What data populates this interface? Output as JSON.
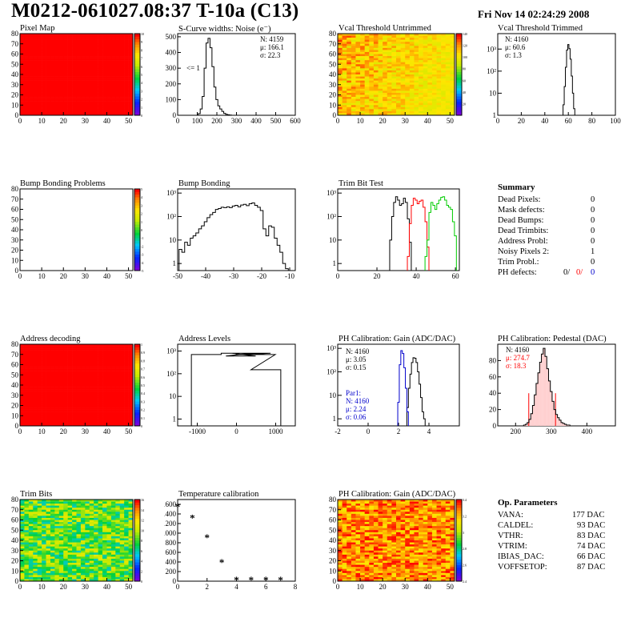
{
  "header": {
    "title": "M0212-061027.08:37 T-10a (C13)",
    "date": "Fri Nov 14 02:24:29 2008"
  },
  "panels": {
    "pixel_map": {
      "title": "Pixel Map"
    },
    "scurve": {
      "title": "S-Curve widths: Noise (e⁻)",
      "stats": [
        "N: 4159",
        "μ: 166.1",
        "σ: 22.3"
      ],
      "note": "<= 1"
    },
    "vcal_untrimmed": {
      "title": "Vcal Threshold Untrimmed"
    },
    "vcal_trimmed": {
      "title": "Vcal Threshold Trimmed",
      "stats": [
        "N: 4160",
        "μ: 60.6",
        "σ:  1.3"
      ]
    },
    "bump_problems": {
      "title": "Bump Bonding Problems"
    },
    "bump_bonding": {
      "title": "Bump Bonding"
    },
    "trim_bit_test": {
      "title": "Trim Bit Test"
    },
    "address_decoding": {
      "title": "Address decoding"
    },
    "address_levels": {
      "title": "Address Levels"
    },
    "ph_gain": {
      "title": "PH Calibration: Gain (ADC/DAC)",
      "stats": [
        "N: 4160",
        "μ: 3.05",
        "σ: 0.15"
      ],
      "par_stats": [
        "Par1:",
        "N: 4160",
        "μ: 2.24",
        "σ: 0.06"
      ]
    },
    "ph_pedestal": {
      "title": "PH Calibration: Pedestal (DAC)",
      "stats": [
        "N: 4160",
        "μ: 274.7",
        "σ: 18.3"
      ]
    },
    "trim_bits": {
      "title": "Trim Bits"
    },
    "temperature": {
      "title": "Temperature calibration"
    },
    "ph_gain_map": {
      "title": "PH Calibration: Gain (ADC/DAC)"
    }
  },
  "summary": {
    "title": "Summary",
    "rows": [
      {
        "label": "Dead Pixels:",
        "value": "0"
      },
      {
        "label": "Mask defects:",
        "value": "0"
      },
      {
        "label": "Dead Bumps:",
        "value": "0"
      },
      {
        "label": "Dead Trimbits:",
        "value": "0"
      },
      {
        "label": "Address Probl:",
        "value": "0"
      },
      {
        "label": "Noisy Pixels 2:",
        "value": "1"
      },
      {
        "label": "Trim Probl.:",
        "value": "0"
      }
    ],
    "ph_defects": {
      "label": "PH defects:",
      "v1": "0/",
      "v2": "0/",
      "v3": "0"
    }
  },
  "op_params": {
    "title": "Op. Parameters",
    "rows": [
      {
        "label": "VANA:",
        "value": "177 DAC"
      },
      {
        "label": "CALDEL:",
        "value": "93 DAC"
      },
      {
        "label": "VTHR:",
        "value": "83 DAC"
      },
      {
        "label": "VTRIM:",
        "value": "74 DAC"
      },
      {
        "label": "IBIAS_DAC:",
        "value": "66 DAC"
      },
      {
        "label": "VOFFSETOP:",
        "value": "87 DAC"
      }
    ]
  },
  "colors": {
    "red": "#ff0000",
    "blue": "#0000cc",
    "green": "#00cc00"
  },
  "chart_data": [
    {
      "id": "pixel_map",
      "type": "heatmap",
      "xlim": [
        0,
        52
      ],
      "ylim": [
        0,
        80
      ],
      "xticks": [
        0,
        10,
        20,
        30,
        40,
        50
      ],
      "yticks": [
        0,
        10,
        20,
        30,
        40,
        50,
        60,
        70,
        80
      ],
      "fill": "uniform-max",
      "zlim": [
        0,
        10
      ],
      "zticks": [
        0,
        1,
        2,
        3,
        4,
        5,
        6,
        7,
        8,
        9,
        10
      ]
    },
    {
      "id": "scurve",
      "type": "histogram",
      "xlim": [
        0,
        600
      ],
      "ylim": [
        0,
        520
      ],
      "xticks": [
        0,
        100,
        200,
        300,
        400,
        500,
        600
      ],
      "yticks": [
        0,
        100,
        200,
        300,
        400,
        500
      ],
      "x": [
        110,
        120,
        130,
        140,
        150,
        160,
        170,
        180,
        190,
        200,
        210,
        220,
        230,
        240,
        250,
        260,
        270
      ],
      "values": [
        10,
        40,
        120,
        300,
        460,
        490,
        430,
        310,
        180,
        100,
        60,
        40,
        25,
        12,
        6,
        3,
        1
      ]
    },
    {
      "id": "vcal_untrimmed",
      "type": "heatmap",
      "xlim": [
        0,
        52
      ],
      "ylim": [
        0,
        80
      ],
      "xticks": [
        0,
        10,
        20,
        30,
        40,
        50
      ],
      "yticks": [
        0,
        10,
        20,
        30,
        40,
        50,
        60,
        70,
        80
      ],
      "zlim": [
        0,
        140
      ],
      "zticks": [
        20,
        40,
        60,
        80,
        100,
        120,
        140
      ]
    },
    {
      "id": "vcal_trimmed",
      "type": "histogram",
      "log": true,
      "xlim": [
        0,
        100
      ],
      "ylim": [
        1,
        5000
      ],
      "xticks": [
        0,
        20,
        40,
        60,
        80,
        100
      ],
      "x": [
        56,
        57,
        58,
        59,
        60,
        61,
        62,
        63,
        64,
        65
      ],
      "values": [
        3,
        20,
        150,
        900,
        1600,
        1050,
        350,
        60,
        10,
        2
      ]
    },
    {
      "id": "bump_problems",
      "type": "heatmap",
      "xlim": [
        0,
        52
      ],
      "ylim": [
        0,
        80
      ],
      "xticks": [
        0,
        10,
        20,
        30,
        40,
        50
      ],
      "yticks": [
        0,
        10,
        20,
        30,
        40,
        50,
        60,
        70,
        80
      ],
      "fill": "empty",
      "zlim": [
        -5,
        5
      ],
      "zticks": [
        -5,
        -4,
        -3,
        -2,
        -1,
        0,
        1,
        2,
        3,
        4,
        5
      ]
    },
    {
      "id": "bump_bonding",
      "type": "histogram",
      "log": true,
      "xlim": [
        -50,
        -8
      ],
      "ylim": [
        0.5,
        1500
      ],
      "xticks": [
        -50,
        -40,
        -30,
        -20,
        -10
      ],
      "x": [
        -49,
        -48,
        -47,
        -46,
        -45,
        -44,
        -43,
        -42,
        -41,
        -40,
        -39,
        -38,
        -37,
        -36,
        -35,
        -34,
        -33,
        -32,
        -31,
        -30,
        -29,
        -28,
        -27,
        -26,
        -25,
        -24,
        -23,
        -22,
        -21,
        -20,
        -19,
        -18,
        -17,
        -16,
        -15,
        -14,
        -13,
        -12,
        -11
      ],
      "values": [
        4,
        3,
        8,
        6,
        12,
        15,
        20,
        30,
        40,
        60,
        90,
        120,
        150,
        200,
        220,
        250,
        240,
        260,
        240,
        280,
        300,
        260,
        310,
        330,
        290,
        350,
        380,
        300,
        250,
        180,
        30,
        15,
        40,
        35,
        12,
        6,
        3,
        1,
        0.6
      ]
    },
    {
      "id": "trim_bit_test",
      "type": "histogram",
      "log": true,
      "xlim": [
        0,
        62
      ],
      "ylim": [
        0.5,
        1500
      ],
      "xticks": [
        0,
        20,
        40,
        60
      ],
      "series": [
        {
          "color": "#000000",
          "x": [
            27,
            28,
            29,
            30,
            31,
            32,
            33,
            34,
            35,
            36,
            37
          ],
          "values": [
            10,
            100,
            400,
            700,
            500,
            300,
            350,
            600,
            400,
            80,
            8
          ]
        },
        {
          "color": "#ff0000",
          "x": [
            36,
            37,
            38,
            39,
            40,
            41,
            42,
            43,
            44,
            45,
            46
          ],
          "values": [
            2,
            50,
            300,
            600,
            500,
            350,
            450,
            500,
            250,
            60,
            5
          ]
        },
        {
          "color": "#00cc00",
          "x": [
            45,
            46,
            47,
            48,
            49,
            50,
            51,
            52,
            53,
            54,
            55,
            56,
            57,
            58,
            59,
            60
          ],
          "values": [
            2,
            10,
            150,
            400,
            300,
            200,
            350,
            500,
            650,
            700,
            500,
            300,
            250,
            200,
            60,
            15
          ]
        }
      ]
    },
    {
      "id": "address_decoding",
      "type": "heatmap",
      "xlim": [
        0,
        52
      ],
      "ylim": [
        0,
        80
      ],
      "xticks": [
        0,
        10,
        20,
        30,
        40,
        50
      ],
      "yticks": [
        0,
        10,
        20,
        30,
        40,
        50,
        60,
        70,
        80
      ],
      "fill": "uniform-max",
      "zlim": [
        0,
        1
      ],
      "zticks": [
        0,
        0.1,
        0.2,
        0.3,
        0.4,
        0.5,
        0.6,
        0.7,
        0.8,
        0.9,
        1
      ]
    },
    {
      "id": "address_levels",
      "type": "histogram",
      "log": true,
      "xlim": [
        -1500,
        1500
      ],
      "ylim": [
        0.5,
        2000
      ],
      "xticks": [
        -1000,
        0,
        1000
      ],
      "x": [
        -770,
        -10,
        110,
        260,
        360,
        490,
        610,
        750
      ],
      "values": [
        700,
        800,
        600,
        800,
        700,
        800,
        700,
        150
      ]
    },
    {
      "id": "ph_gain",
      "type": "histogram",
      "log": true,
      "xlim": [
        -2,
        6
      ],
      "ylim": [
        0.5,
        1500
      ],
      "xticks": [
        -2,
        0,
        2,
        4
      ],
      "series": [
        {
          "color": "#000000",
          "x": [
            2.6,
            2.7,
            2.8,
            2.9,
            3.0,
            3.1,
            3.2,
            3.3,
            3.4,
            3.5,
            3.6,
            3.7
          ],
          "values": [
            3,
            20,
            80,
            250,
            400,
            380,
            250,
            100,
            30,
            8,
            2,
            1
          ]
        },
        {
          "color": "#0000cc",
          "x": [
            2.0,
            2.1,
            2.2,
            2.3,
            2.4,
            2.5,
            2.6
          ],
          "values": [
            5,
            200,
            800,
            600,
            150,
            20,
            2
          ]
        }
      ]
    },
    {
      "id": "ph_pedestal",
      "type": "histogram",
      "xlim": [
        150,
        480
      ],
      "ylim": [
        0,
        100
      ],
      "xticks": [
        200,
        300,
        400
      ],
      "yticks": [
        0,
        20,
        40,
        60,
        80
      ],
      "x": [
        225,
        230,
        235,
        240,
        245,
        250,
        255,
        260,
        265,
        270,
        275,
        280,
        285,
        290,
        295,
        300,
        305,
        310,
        315,
        320,
        325,
        330,
        335,
        340,
        345,
        350
      ],
      "values": [
        1,
        2,
        4,
        8,
        15,
        25,
        38,
        52,
        65,
        78,
        88,
        95,
        85,
        70,
        55,
        42,
        30,
        20,
        14,
        10,
        7,
        4,
        3,
        2,
        1,
        1
      ],
      "fit_lines": [
        237,
        312
      ]
    },
    {
      "id": "trim_bits",
      "type": "heatmap",
      "xlim": [
        0,
        52
      ],
      "ylim": [
        0,
        80
      ],
      "xticks": [
        0,
        10,
        20,
        30,
        40,
        50
      ],
      "yticks": [
        0,
        10,
        20,
        30,
        40,
        50,
        60,
        70,
        80
      ],
      "zlim": [
        0,
        16
      ],
      "zticks": [
        0,
        2,
        4,
        6,
        8,
        10,
        12,
        14,
        16
      ]
    },
    {
      "id": "temperature",
      "type": "scatter",
      "xlim": [
        0,
        8
      ],
      "ylim": [
        0,
        1700
      ],
      "xticks": [
        0,
        2,
        4,
        6,
        8
      ],
      "yticks": [
        0,
        200,
        400,
        600,
        800,
        1000,
        1200,
        1400,
        1600
      ],
      "x": [
        0,
        1,
        2,
        3,
        4,
        5,
        6,
        7
      ],
      "values": [
        1540,
        1310,
        900,
        380,
        20,
        20,
        20,
        20
      ]
    },
    {
      "id": "ph_gain_map",
      "type": "heatmap",
      "xlim": [
        0,
        52
      ],
      "ylim": [
        0,
        80
      ],
      "xticks": [
        0,
        10,
        20,
        30,
        40,
        50
      ],
      "yticks": [
        0,
        10,
        20,
        30,
        40,
        50,
        60,
        70,
        80
      ],
      "zlim": [
        2.4,
        3.4
      ],
      "zticks": [
        2.4,
        2.6,
        2.8,
        3,
        3.2,
        3.4
      ]
    }
  ]
}
